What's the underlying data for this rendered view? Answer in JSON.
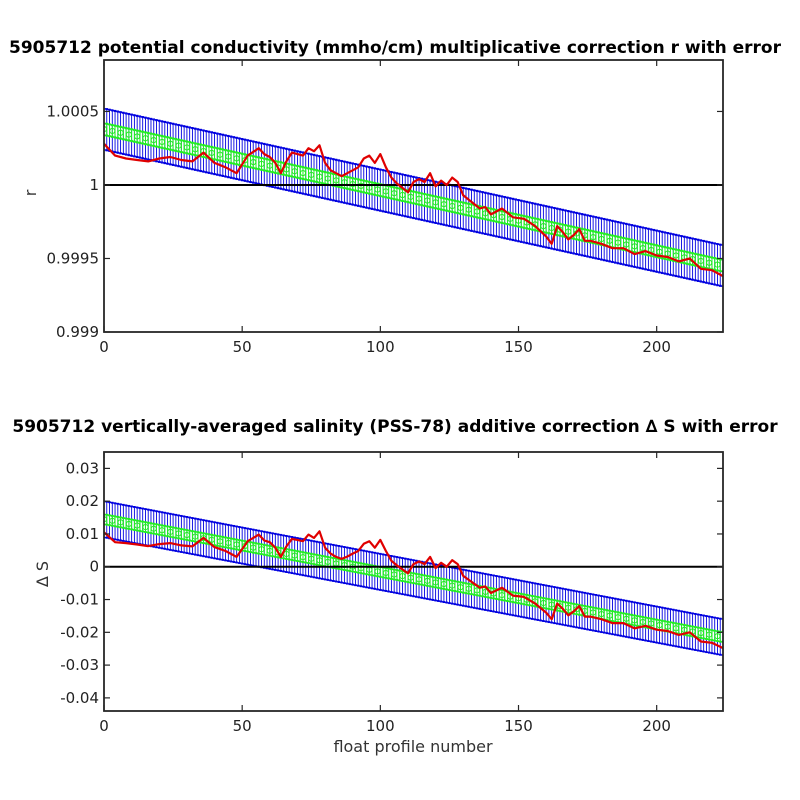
{
  "chart_data": [
    {
      "type": "line",
      "title": "5905712 potential conductivity (mmho/cm) multiplicative correction r with error",
      "xlabel": "",
      "ylabel": "r",
      "xlim": [
        0,
        224
      ],
      "ylim": [
        0.999,
        1.00085
      ],
      "xticks": [
        "0",
        "50",
        "100",
        "150",
        "200"
      ],
      "xtick_values": [
        0,
        50,
        100,
        150,
        200
      ],
      "yticks": [
        "0.999",
        "0.9995",
        "1",
        "1.0005"
      ],
      "ytick_values": [
        0.999,
        0.9995,
        1.0,
        1.0005
      ],
      "reference_line": 1.0,
      "fit": {
        "start": 1.00038,
        "end": 0.99945,
        "inner_error": 4e-05,
        "outer_error": 0.00014
      },
      "series": [
        {
          "x": [
            0,
            4,
            8,
            12,
            16,
            20,
            24,
            28,
            32,
            36,
            40,
            44,
            48,
            52,
            56,
            58,
            60,
            62,
            64,
            66,
            68,
            70,
            72,
            74,
            76,
            78,
            80,
            82,
            84,
            86,
            88,
            90,
            92,
            94,
            96,
            98,
            100,
            102,
            104,
            106,
            108,
            110,
            112,
            114,
            116,
            118,
            120,
            122,
            124,
            126,
            128,
            130,
            132,
            134,
            136,
            138,
            140,
            144,
            148,
            152,
            156,
            160,
            162,
            164,
            166,
            168,
            170,
            172,
            174,
            176,
            180,
            184,
            188,
            192,
            196,
            200,
            204,
            208,
            212,
            216,
            220,
            224
          ],
          "y": [
            1.00028,
            1.0002,
            1.00018,
            1.00017,
            1.00016,
            1.00018,
            1.00019,
            1.00017,
            1.00016,
            1.00022,
            1.00015,
            1.00012,
            1.00008,
            1.0002,
            1.00025,
            1.00021,
            1.00019,
            1.00015,
            1.00008,
            1.00016,
            1.00022,
            1.00021,
            1.0002,
            1.00025,
            1.00023,
            1.00027,
            1.00015,
            1.0001,
            1.00008,
            1.00006,
            1.00008,
            1.0001,
            1.00012,
            1.00018,
            1.0002,
            1.00015,
            1.00021,
            1.00012,
            1.00005,
            1.00001,
            0.99998,
            0.99995,
            1.00002,
            1.00004,
            1.00002,
            1.00008,
            0.99999,
            1.00003,
            1.0,
            1.00005,
            1.00002,
            0.99993,
            0.9999,
            0.99987,
            0.99984,
            0.99985,
            0.9998,
            0.99984,
            0.99978,
            0.99977,
            0.99972,
            0.99965,
            0.9996,
            0.99972,
            0.99968,
            0.99963,
            0.99966,
            0.9997,
            0.99962,
            0.99962,
            0.9996,
            0.99957,
            0.99957,
            0.99953,
            0.99955,
            0.99952,
            0.99951,
            0.99948,
            0.9995,
            0.99943,
            0.99942,
            0.99938
          ]
        }
      ]
    },
    {
      "type": "line",
      "title": "5905712 vertically-averaged salinity (PSS-78) additive correction ∆ S with error",
      "xlabel": "float profile number",
      "ylabel": "∆ S",
      "xlim": [
        0,
        224
      ],
      "ylim": [
        -0.044,
        0.035
      ],
      "xticks": [
        "0",
        "50",
        "100",
        "150",
        "200"
      ],
      "xtick_values": [
        0,
        50,
        100,
        150,
        200
      ],
      "yticks": [
        "0.03",
        "0.02",
        "0.01",
        "0",
        "-0.01",
        "-0.02",
        "-0.03",
        "-0.04"
      ],
      "ytick_values": [
        0.03,
        0.02,
        0.01,
        0,
        -0.01,
        -0.02,
        -0.03,
        -0.04
      ],
      "reference_line": 0,
      "fit": {
        "start": 0.0145,
        "end": -0.0215,
        "inner_error": 0.0015,
        "outer_error": 0.0055
      },
      "series": [
        {
          "x": [
            0,
            4,
            8,
            12,
            16,
            20,
            24,
            28,
            32,
            36,
            40,
            44,
            48,
            52,
            56,
            58,
            60,
            62,
            64,
            66,
            68,
            70,
            72,
            74,
            76,
            78,
            80,
            82,
            84,
            86,
            88,
            90,
            92,
            94,
            96,
            98,
            100,
            102,
            104,
            106,
            108,
            110,
            112,
            114,
            116,
            118,
            120,
            122,
            124,
            126,
            128,
            130,
            132,
            134,
            136,
            138,
            140,
            144,
            148,
            152,
            156,
            160,
            162,
            164,
            166,
            168,
            170,
            172,
            174,
            176,
            180,
            184,
            188,
            192,
            196,
            200,
            204,
            208,
            212,
            216,
            220,
            224
          ],
          "y": [
            0.0105,
            0.0075,
            0.0072,
            0.0068,
            0.0063,
            0.0069,
            0.0072,
            0.0065,
            0.0062,
            0.0088,
            0.006,
            0.0048,
            0.003,
            0.0078,
            0.0098,
            0.008,
            0.0075,
            0.0058,
            0.003,
            0.0062,
            0.0085,
            0.0082,
            0.0078,
            0.0098,
            0.0088,
            0.0108,
            0.0058,
            0.004,
            0.003,
            0.0024,
            0.0031,
            0.004,
            0.0048,
            0.007,
            0.0078,
            0.0058,
            0.0082,
            0.0048,
            0.0018,
            0.0004,
            -0.0008,
            -0.002,
            0.0008,
            0.0016,
            0.0008,
            0.003,
            -0.0004,
            0.0012,
            0.0,
            0.002,
            0.0008,
            -0.0028,
            -0.004,
            -0.0052,
            -0.0064,
            -0.006,
            -0.008,
            -0.0064,
            -0.0088,
            -0.0092,
            -0.0112,
            -0.014,
            -0.016,
            -0.0112,
            -0.0128,
            -0.0148,
            -0.0136,
            -0.012,
            -0.0152,
            -0.0152,
            -0.016,
            -0.0172,
            -0.0172,
            -0.0188,
            -0.018,
            -0.0192,
            -0.0196,
            -0.0208,
            -0.02,
            -0.0228,
            -0.0232,
            -0.0248
          ]
        }
      ]
    }
  ]
}
